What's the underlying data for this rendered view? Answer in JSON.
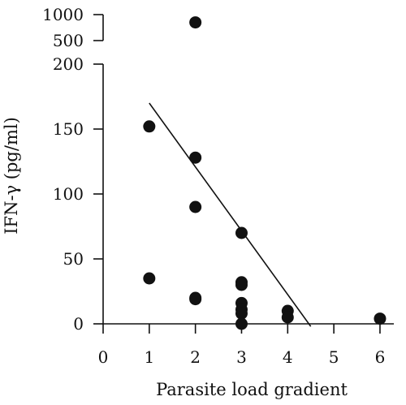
{
  "chart_data": {
    "type": "scatter",
    "title": "",
    "xlabel": "Parasite load gradient",
    "ylabel": "IFN-γ (pg/ml)",
    "x_ticks": [
      0,
      1,
      2,
      3,
      4,
      5,
      6
    ],
    "xlim": [
      0,
      6.3
    ],
    "y_ticks_lower": [
      0,
      50,
      100,
      150,
      200
    ],
    "ylim_lower": [
      0,
      200
    ],
    "y_ticks_upper": [
      500,
      1000
    ],
    "ylim_upper": [
      500,
      1000
    ],
    "y_axis_break": true,
    "grid": false,
    "points": [
      {
        "x": 1,
        "y": 152
      },
      {
        "x": 1,
        "y": 35
      },
      {
        "x": 2,
        "y": 850
      },
      {
        "x": 2,
        "y": 128
      },
      {
        "x": 2,
        "y": 90
      },
      {
        "x": 2,
        "y": 20
      },
      {
        "x": 2,
        "y": 19
      },
      {
        "x": 3,
        "y": 70
      },
      {
        "x": 3,
        "y": 32
      },
      {
        "x": 3,
        "y": 30
      },
      {
        "x": 3,
        "y": 16
      },
      {
        "x": 3,
        "y": 11
      },
      {
        "x": 3,
        "y": 8
      },
      {
        "x": 3,
        "y": 0
      },
      {
        "x": 4,
        "y": 10
      },
      {
        "x": 4,
        "y": 5
      },
      {
        "x": 6,
        "y": 4
      }
    ],
    "trendline": {
      "x": [
        1,
        4.5
      ],
      "y": [
        170,
        -2
      ]
    },
    "marker_color": "#111111"
  }
}
